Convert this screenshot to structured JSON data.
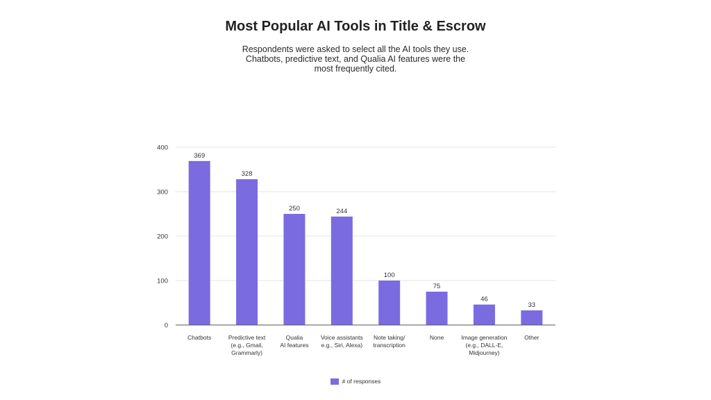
{
  "title": "Most Popular AI Tools in Title & Escrow",
  "subtitle_lines": [
    "Respondents were asked to select all the AI tools they use.",
    "Chatbots, predictive text, and Qualia AI features were the",
    "most frequently cited."
  ],
  "colors": {
    "bar": "#7B6BE0",
    "grid": "#e6e6e6",
    "axis": "#555555",
    "text": "#333333"
  },
  "chart_data": {
    "type": "bar",
    "categories": [
      [
        "Chatbots"
      ],
      [
        "Predictive text",
        "(e.g., Gmail,",
        "Grammarly)"
      ],
      [
        "Qualia",
        "AI features"
      ],
      [
        "Voice assistants",
        "e.g., Siri, Alexa)"
      ],
      [
        "Note taking/",
        "transcription"
      ],
      [
        "None"
      ],
      [
        "Image generation",
        "(e.g., DALL-E,",
        "Midjourney)"
      ],
      [
        "Other"
      ]
    ],
    "series": [
      {
        "name": "# of responses",
        "values": [
          369,
          328,
          250,
          244,
          100,
          75,
          46,
          33
        ]
      }
    ],
    "ylim": [
      0,
      400
    ],
    "yticks": [
      0,
      100,
      200,
      300,
      400
    ],
    "grid": true,
    "legend": "bottom",
    "xlabel": "",
    "ylabel": ""
  }
}
